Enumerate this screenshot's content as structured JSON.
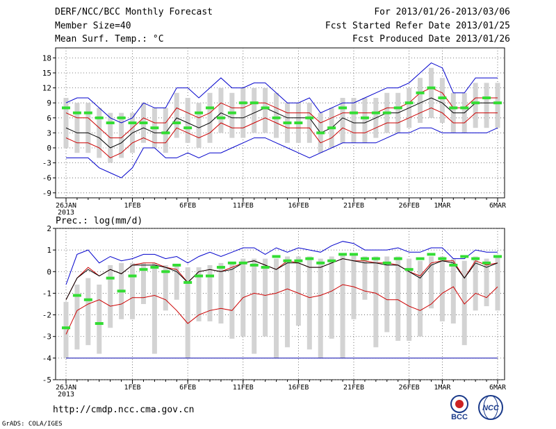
{
  "header": {
    "left": [
      "DERF/NCC/BCC Monthly Forecast",
      "Member Size=40",
      "Mean Surf. Temp.: °C"
    ],
    "right": [
      "For 2013/01/26-2013/03/06",
      "Fcst Started Refer Date 2013/01/25",
      "Fcst Produced Date 2013/01/26"
    ]
  },
  "footer": {
    "url": "http://cmdp.ncc.cma.gov.cn",
    "credit": "GrADS: COLA/IGES"
  },
  "logos": {
    "left": "BCC",
    "right": "NCC"
  },
  "colors": {
    "envelope": "#0000cc",
    "quartile": "#cc0000",
    "median": "#000000",
    "ensemble_mean": "#33dd33",
    "spread_bar": "#d3d3d3",
    "floor_line": "#0000aa"
  },
  "chart_data": [
    {
      "id": "temperature",
      "type": "box-ensemble",
      "title": "",
      "ylim": [
        -10,
        20
      ],
      "yticks": [
        -9,
        -6,
        -3,
        0,
        3,
        6,
        9,
        12,
        15,
        18
      ],
      "xticks": [
        {
          "day": 0,
          "label": "26JAN",
          "sub": "2013"
        },
        {
          "day": 6,
          "label": "1FEB"
        },
        {
          "day": 11,
          "label": "6FEB"
        },
        {
          "day": 16,
          "label": "11FEB"
        },
        {
          "day": 21,
          "label": "16FEB"
        },
        {
          "day": 26,
          "label": "21FEB"
        },
        {
          "day": 31,
          "label": "26FEB"
        },
        {
          "day": 34,
          "label": "1MAR"
        },
        {
          "day": 39,
          "label": "6MAR"
        }
      ],
      "days": 40,
      "series": [
        {
          "name": "max",
          "values": [
            -2,
            -2,
            -2,
            -4,
            -5,
            -6,
            -4,
            0,
            0,
            -2,
            -2,
            -1,
            -2,
            -1,
            -1,
            0,
            1,
            2,
            2,
            1,
            0,
            -1,
            -2,
            -1,
            0,
            1,
            1,
            1,
            1,
            2,
            3,
            3,
            4,
            4,
            3,
            3,
            3,
            3,
            3,
            4
          ]
        },
        {
          "name": "min",
          "values": [
            9,
            10,
            10,
            8,
            6,
            5,
            6,
            9,
            8,
            8,
            12,
            12,
            10,
            12,
            14,
            12,
            12,
            13,
            13,
            11,
            9,
            9,
            10,
            7,
            8,
            9,
            9,
            10,
            11,
            12,
            12,
            13,
            15,
            17,
            16,
            11,
            11,
            14,
            14,
            14
          ]
        },
        {
          "name": "upper_quartile",
          "values": [
            7,
            6,
            6,
            4,
            2,
            2,
            4,
            6,
            5,
            5,
            8,
            7,
            6,
            7,
            9,
            8,
            8,
            9,
            9,
            8,
            7,
            7,
            7,
            5,
            6,
            7,
            7,
            7,
            7,
            8,
            8,
            9,
            11,
            12,
            11,
            8,
            8,
            10,
            10,
            10
          ]
        },
        {
          "name": "median",
          "values": [
            4,
            3,
            3,
            2,
            0,
            1,
            3,
            4,
            3,
            3,
            6,
            5,
            4,
            5,
            7,
            6,
            6,
            7,
            8,
            7,
            6,
            6,
            6,
            3,
            4,
            6,
            5,
            5,
            6,
            7,
            7,
            8,
            9,
            10,
            9,
            7,
            7,
            9,
            9,
            9
          ]
        },
        {
          "name": "lower_quartile",
          "values": [
            2,
            1,
            1,
            0,
            -2,
            -1,
            1,
            2,
            1,
            1,
            4,
            3,
            2,
            3,
            5,
            4,
            4,
            5,
            6,
            5,
            4,
            4,
            4,
            1,
            2,
            4,
            3,
            3,
            4,
            5,
            5,
            6,
            7,
            8,
            7,
            5,
            5,
            7,
            7,
            7
          ]
        },
        {
          "name": "ensemble_mean",
          "values": [
            8,
            7,
            7,
            6,
            5,
            6,
            5,
            5,
            4,
            3,
            5,
            4,
            7,
            8,
            6,
            7,
            9,
            9,
            8,
            6,
            5,
            5,
            6,
            3,
            4,
            8,
            7,
            6,
            7,
            7,
            8,
            9,
            11,
            12,
            10,
            8,
            8,
            9,
            10,
            9
          ]
        },
        {
          "name": "spread_high",
          "values": [
            10,
            9,
            9,
            8,
            7,
            7,
            7,
            9,
            8,
            8,
            11,
            10,
            9,
            11,
            12,
            11,
            12,
            12,
            12,
            11,
            9,
            9,
            9,
            7,
            8,
            10,
            10,
            10,
            10,
            11,
            11,
            12,
            14,
            16,
            14,
            11,
            11,
            13,
            13,
            13
          ]
        },
        {
          "name": "spread_low",
          "values": [
            0,
            -1,
            -1,
            -2,
            -3,
            -2,
            -1,
            1,
            0,
            -1,
            2,
            1,
            0,
            1,
            3,
            2,
            2,
            3,
            3,
            2,
            1,
            1,
            1,
            -1,
            0,
            1,
            1,
            1,
            2,
            3,
            3,
            4,
            5,
            6,
            5,
            3,
            3,
            4,
            4,
            4
          ]
        }
      ]
    },
    {
      "id": "precipitation",
      "type": "box-ensemble",
      "title": "Prec.: log(mm/d)",
      "ylim": [
        -5,
        2
      ],
      "yticks": [
        -5,
        -4,
        -3,
        -2,
        -1,
        0,
        1,
        2
      ],
      "xticks": [
        {
          "day": 0,
          "label": "26JAN",
          "sub": "2013"
        },
        {
          "day": 6,
          "label": "1FEB"
        },
        {
          "day": 11,
          "label": "6FEB"
        },
        {
          "day": 16,
          "label": "11FEB"
        },
        {
          "day": 21,
          "label": "16FEB"
        },
        {
          "day": 26,
          "label": "21FEB"
        },
        {
          "day": 31,
          "label": "26FEB"
        },
        {
          "day": 34,
          "label": "1MAR"
        },
        {
          "day": 39,
          "label": "6MAR"
        }
      ],
      "days": 40,
      "floor": -4,
      "series": [
        {
          "name": "max",
          "values": [
            -0.6,
            0.8,
            1.0,
            0.4,
            0.7,
            0.5,
            0.6,
            0.8,
            0.8,
            0.6,
            0.7,
            0.4,
            0.7,
            0.9,
            0.7,
            0.9,
            1.1,
            1.1,
            0.8,
            1.1,
            0.9,
            1.1,
            1.0,
            0.9,
            1.2,
            1.4,
            1.3,
            1.0,
            1.0,
            1.0,
            1.1,
            0.9,
            0.9,
            1.1,
            1.1,
            0.6,
            0.6,
            1.0,
            0.9,
            0.9
          ]
        },
        {
          "name": "upper_quartile",
          "values": [
            -1.3,
            -0.3,
            0.2,
            -0.2,
            0.1,
            -0.1,
            0.3,
            0.4,
            0.4,
            0.2,
            0.1,
            -0.5,
            0.0,
            0.1,
            0.0,
            0.2,
            0.4,
            0.5,
            0.3,
            0.1,
            0.5,
            0.4,
            0.2,
            0.2,
            0.4,
            0.6,
            0.5,
            0.5,
            0.4,
            0.4,
            0.3,
            0.0,
            -0.2,
            0.4,
            0.5,
            0.5,
            -0.3,
            0.5,
            0.3,
            0.4
          ]
        },
        {
          "name": "median",
          "values": [
            -1.3,
            -0.3,
            0.1,
            -0.2,
            0.1,
            -0.1,
            0.3,
            0.3,
            0.3,
            0.2,
            0.0,
            -0.5,
            0.0,
            0.1,
            0.0,
            0.1,
            0.4,
            0.5,
            0.3,
            0.1,
            0.4,
            0.4,
            0.2,
            0.2,
            0.4,
            0.6,
            0.5,
            0.4,
            0.4,
            0.3,
            0.3,
            0.0,
            -0.3,
            0.3,
            0.5,
            0.4,
            -0.3,
            0.4,
            0.2,
            0.4
          ]
        },
        {
          "name": "lower_quartile",
          "values": [
            -2.9,
            -1.8,
            -1.5,
            -1.3,
            -1.6,
            -1.5,
            -1.2,
            -1.2,
            -1.1,
            -1.3,
            -1.8,
            -2.4,
            -2.0,
            -1.8,
            -1.7,
            -1.8,
            -1.2,
            -1.0,
            -1.1,
            -1.0,
            -0.8,
            -1.0,
            -1.2,
            -1.1,
            -0.9,
            -0.6,
            -0.7,
            -0.9,
            -1.0,
            -1.3,
            -1.3,
            -1.6,
            -1.8,
            -1.5,
            -1.0,
            -0.7,
            -1.5,
            -1.0,
            -1.2,
            -0.7
          ]
        },
        {
          "name": "ensemble_mean",
          "values": [
            -2.6,
            -1.1,
            -1.3,
            -2.4,
            -0.3,
            -0.9,
            -0.2,
            0.1,
            0.2,
            0.0,
            0.3,
            -0.5,
            -0.2,
            -0.2,
            0.2,
            0.4,
            0.4,
            0.3,
            0.2,
            0.7,
            0.5,
            0.5,
            0.6,
            0.4,
            0.5,
            0.8,
            0.8,
            0.6,
            0.6,
            0.4,
            0.6,
            0.1,
            0.6,
            0.8,
            0.6,
            0.3,
            0.7,
            0.6,
            0.4,
            0.7
          ]
        },
        {
          "name": "spread_high",
          "values": [
            -1.4,
            -0.6,
            -0.3,
            -0.6,
            0.3,
            0.4,
            0.4,
            0.4,
            0.4,
            0.3,
            0.3,
            0.2,
            0.2,
            0.3,
            0.4,
            0.4,
            0.6,
            0.6,
            0.6,
            0.6,
            0.7,
            0.7,
            0.7,
            0.6,
            0.7,
            0.8,
            0.8,
            0.7,
            0.7,
            0.7,
            0.7,
            0.6,
            0.5,
            0.7,
            0.7,
            0.6,
            0.5,
            0.7,
            0.6,
            0.7
          ]
        },
        {
          "name": "spread_low",
          "values": [
            -4.0,
            -3.6,
            -3.4,
            -3.8,
            -2.6,
            -2.2,
            -2.2,
            -1.5,
            -3.8,
            -1.8,
            -1.3,
            -4.0,
            -2.3,
            -2.3,
            -2.4,
            -3.1,
            -3.0,
            -3.8,
            -3.0,
            -4.0,
            -3.5,
            -2.5,
            -3.6,
            -4.0,
            -3.1,
            -4.0,
            -2.2,
            -1.3,
            -3.5,
            -2.8,
            -3.2,
            -3.2,
            -3.0,
            -1.7,
            -2.3,
            -2.4,
            -3.4,
            -1.8,
            -1.6,
            -1.8
          ]
        }
      ]
    }
  ]
}
